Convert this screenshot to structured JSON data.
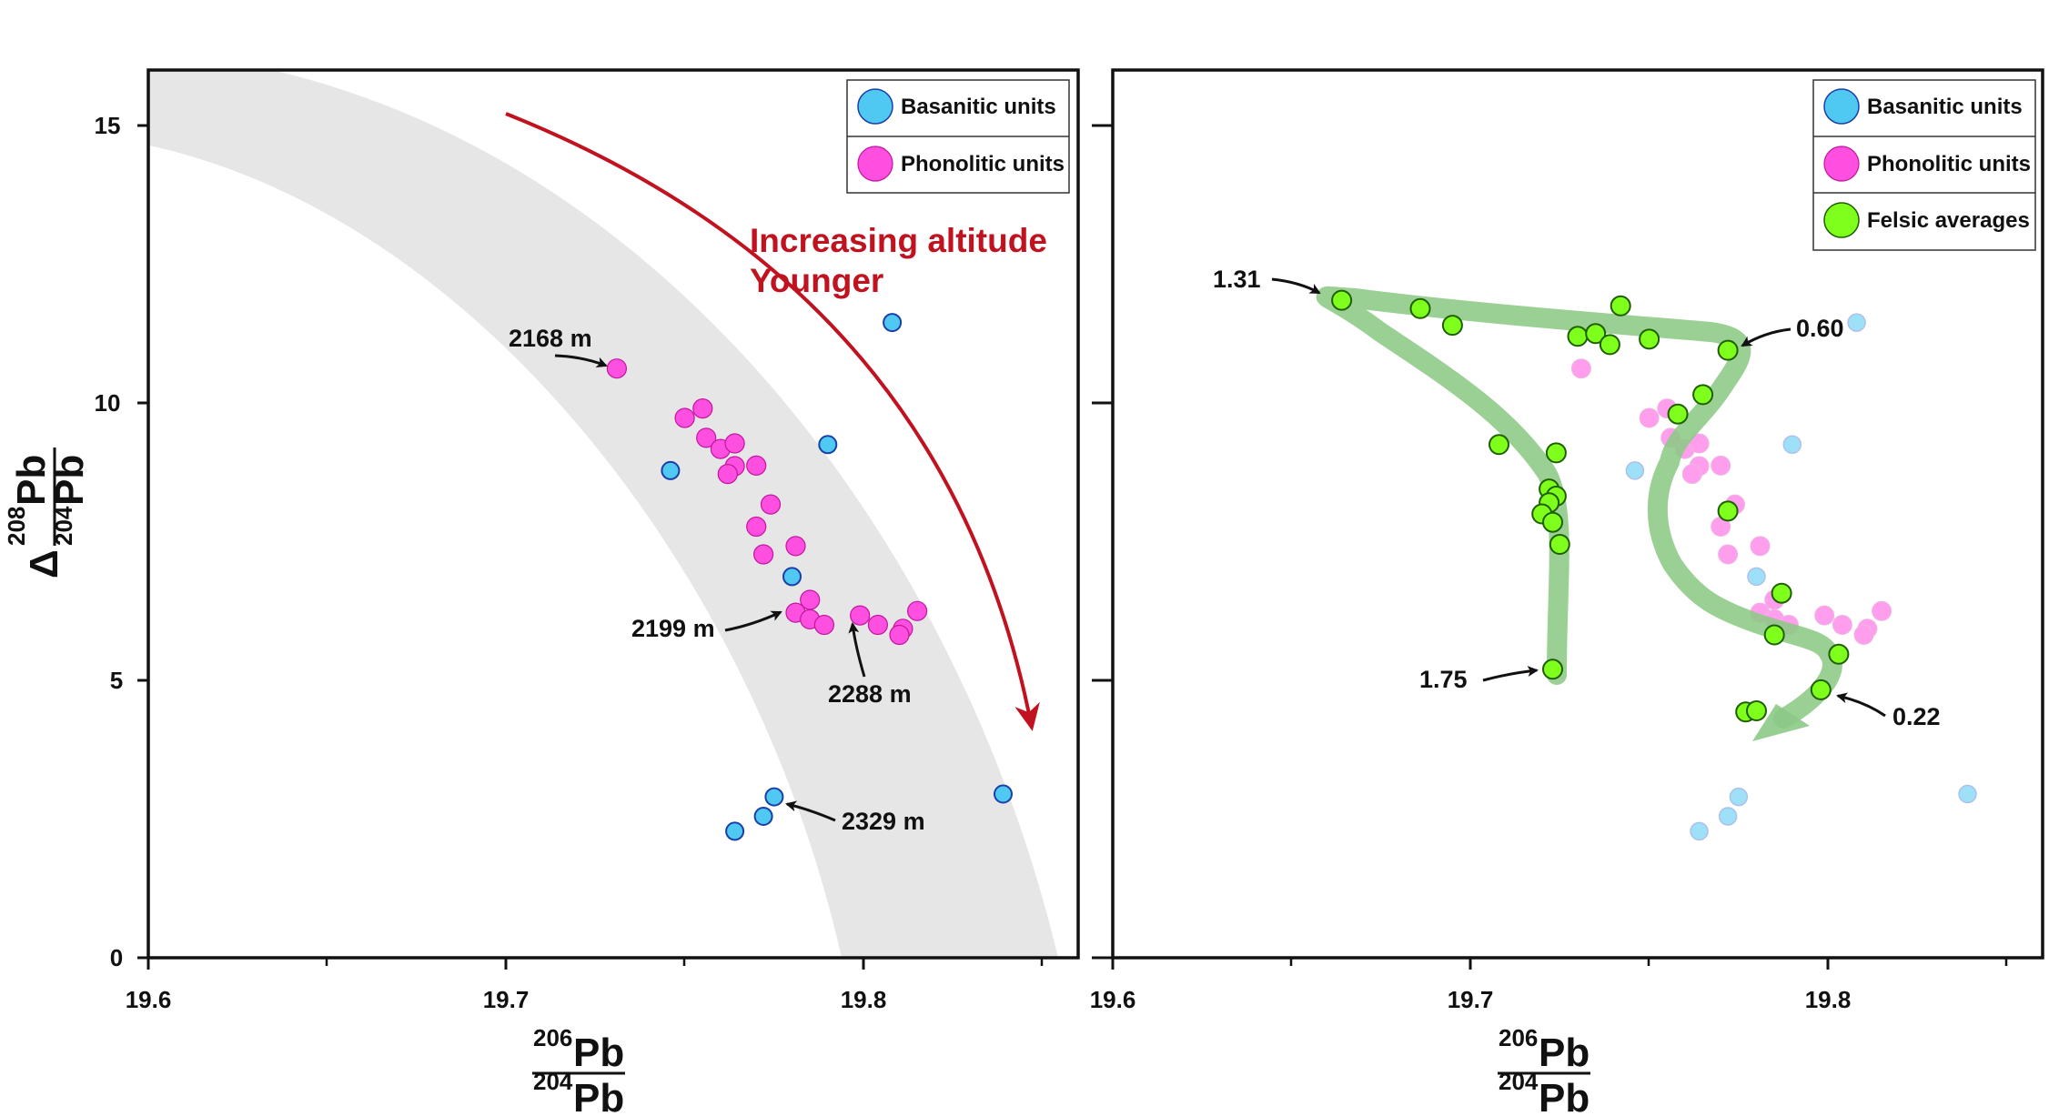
{
  "colors": {
    "basanitic": "#4fc8f2",
    "basanitic_edge": "#1b3fa8",
    "phonolitic": "#ff4fe0",
    "felsic": "#7fff1c",
    "felsic_edge": "#1f5f00",
    "band": "#e6e6e6",
    "arrow_red": "#c1121f",
    "trajectory": "#8cc985"
  },
  "chart_data": [
    {
      "type": "scatter",
      "panel": "left",
      "xlim": [
        19.6,
        19.86
      ],
      "ylim": [
        0,
        16
      ],
      "x_ticks": [
        "19.6",
        "19.7",
        "19.8"
      ],
      "y_ticks": [
        "0",
        "5",
        "10",
        "15"
      ],
      "grid": false,
      "legend_position": "top-right",
      "legend": [
        "Basanitic units",
        "Phonolitic units"
      ],
      "series": [
        {
          "name": "Basanitic units",
          "points": [
            [
              19.808,
              11.45
            ],
            [
              19.79,
              9.25
            ],
            [
              19.746,
              8.78
            ],
            [
              19.78,
              6.87
            ],
            [
              19.775,
              2.9
            ],
            [
              19.772,
              2.55
            ],
            [
              19.764,
              2.28
            ],
            [
              19.839,
              2.95
            ]
          ]
        },
        {
          "name": "Phonolitic units",
          "points": [
            [
              19.731,
              10.62
            ],
            [
              19.755,
              9.9
            ],
            [
              19.75,
              9.73
            ],
            [
              19.756,
              9.37
            ],
            [
              19.76,
              9.17
            ],
            [
              19.764,
              9.27
            ],
            [
              19.764,
              8.86
            ],
            [
              19.762,
              8.72
            ],
            [
              19.77,
              8.87
            ],
            [
              19.774,
              8.17
            ],
            [
              19.77,
              7.77
            ],
            [
              19.772,
              7.27
            ],
            [
              19.781,
              7.42
            ],
            [
              19.781,
              6.22
            ],
            [
              19.785,
              6.45
            ],
            [
              19.785,
              6.1
            ],
            [
              19.789,
              6.0
            ],
            [
              19.799,
              6.17
            ],
            [
              19.804,
              6.0
            ],
            [
              19.811,
              5.93
            ],
            [
              19.81,
              5.82
            ],
            [
              19.815,
              6.25
            ]
          ]
        }
      ],
      "annotations": [
        "2168 m",
        "2199 m",
        "2288 m",
        "2329 m"
      ],
      "trend_text": [
        "Increasing altitude",
        "Younger"
      ],
      "x_label": {
        "sup_num": "206",
        "num": "Pb",
        "sup_den": "204",
        "den": "Pb"
      },
      "y_label": {
        "prefix": "Δ",
        "sup_num": "208",
        "num": "Pb",
        "sup_den": "204",
        "den": "Pb"
      }
    },
    {
      "type": "scatter",
      "panel": "right",
      "xlim": [
        19.6,
        19.86
      ],
      "ylim": [
        0,
        16
      ],
      "x_ticks": [
        "19.6",
        "19.7",
        "19.8"
      ],
      "y_ticks": [
        "0",
        "5",
        "10",
        "15"
      ],
      "grid": false,
      "legend_position": "top-right",
      "legend": [
        "Basanitic units",
        "Phonolitic units",
        "Felsic averages"
      ],
      "series": [
        {
          "name": "Felsic averages",
          "points": [
            [
              19.664,
              11.85
            ],
            [
              19.686,
              11.7
            ],
            [
              19.695,
              11.4
            ],
            [
              19.73,
              11.2
            ],
            [
              19.735,
              11.25
            ],
            [
              19.739,
              11.05
            ],
            [
              19.742,
              11.75
            ],
            [
              19.75,
              11.15
            ],
            [
              19.772,
              10.95
            ],
            [
              19.765,
              10.15
            ],
            [
              19.758,
              9.8
            ],
            [
              19.708,
              9.25
            ],
            [
              19.724,
              9.1
            ],
            [
              19.722,
              8.45
            ],
            [
              19.724,
              8.32
            ],
            [
              19.722,
              8.2
            ],
            [
              19.72,
              8.0
            ],
            [
              19.723,
              7.85
            ],
            [
              19.725,
              7.45
            ],
            [
              19.772,
              8.05
            ],
            [
              19.787,
              6.57
            ],
            [
              19.785,
              5.82
            ],
            [
              19.803,
              5.47
            ],
            [
              19.798,
              4.83
            ],
            [
              19.777,
              4.43
            ],
            [
              19.78,
              4.45
            ],
            [
              19.723,
              5.2
            ]
          ]
        }
      ],
      "annotations": [
        "1.31",
        "0.60",
        "1.75",
        "0.22"
      ],
      "x_label": {
        "sup_num": "206",
        "num": "Pb",
        "sup_den": "204",
        "den": "Pb"
      }
    }
  ]
}
